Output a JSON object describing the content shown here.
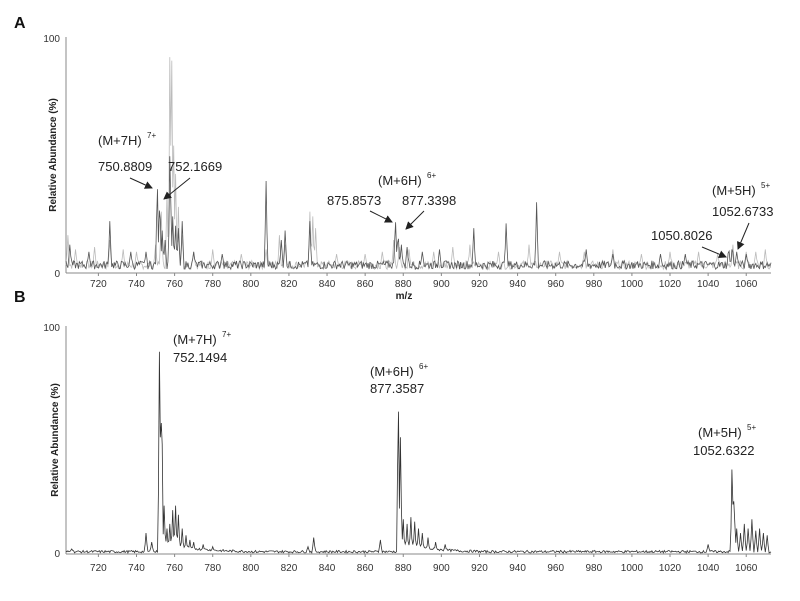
{
  "chart_data": [
    {
      "type": "line",
      "panel": "A",
      "title": "",
      "xlabel": "m/z",
      "ylabel": "Relative Abundance (%)",
      "xlim": [
        703,
        1073
      ],
      "ylim": [
        0,
        100
      ],
      "xticks": [
        "720",
        "740",
        "760",
        "780",
        "800",
        "820",
        "840",
        "860",
        "880",
        "900",
        "920",
        "940",
        "960",
        "980",
        "1000",
        "1020",
        "1040",
        "1060"
      ],
      "yticks": [
        "0",
        "100"
      ],
      "series": [
        {
          "color": "#bbbbbb",
          "peaks": [
            [
              704,
              12
            ],
            [
              708,
              6
            ],
            [
              718,
              7
            ],
            [
              726,
              10
            ],
            [
              733,
              6
            ],
            [
              740,
              5
            ],
            [
              750,
              8
            ],
            [
              753,
              22
            ],
            [
              756,
              30
            ],
            [
              757.6,
              100
            ],
            [
              758.5,
              86
            ],
            [
              759.5,
              50
            ],
            [
              760.5,
              38
            ],
            [
              762,
              24
            ],
            [
              764,
              12
            ],
            [
              770,
              5
            ],
            [
              780,
              6
            ],
            [
              795,
              4
            ],
            [
              808,
              6
            ],
            [
              815,
              12
            ],
            [
              818,
              8
            ],
            [
              831,
              22
            ],
            [
              832.5,
              20
            ],
            [
              834,
              15
            ],
            [
              845,
              4
            ],
            [
              860,
              4
            ],
            [
              869,
              5
            ],
            [
              875,
              10
            ],
            [
              878,
              7
            ],
            [
              883,
              6
            ],
            [
              896,
              5
            ],
            [
              906,
              7
            ],
            [
              915,
              8
            ],
            [
              930,
              5
            ],
            [
              946,
              8
            ],
            [
              962,
              5
            ],
            [
              975,
              5
            ],
            [
              990,
              6
            ],
            [
              1005,
              4
            ],
            [
              1020,
              5
            ],
            [
              1035,
              5
            ],
            [
              1045,
              4
            ],
            [
              1053,
              8
            ],
            [
              1060,
              5
            ],
            [
              1065,
              5
            ],
            [
              1070,
              6
            ]
          ]
        },
        {
          "color": "#555555",
          "peaks": [
            [
              705,
              8
            ],
            [
              715,
              5
            ],
            [
              726,
              18
            ],
            [
              737,
              5
            ],
            [
              745,
              5
            ],
            [
              750.9,
              36
            ],
            [
              752.2,
              30
            ],
            [
              753.5,
              14
            ],
            [
              755,
              10
            ],
            [
              757.6,
              52
            ],
            [
              759,
              20
            ],
            [
              760.5,
              16
            ],
            [
              762,
              15
            ],
            [
              764,
              18
            ],
            [
              770,
              5
            ],
            [
              785,
              4
            ],
            [
              808,
              35
            ],
            [
              816,
              10
            ],
            [
              818,
              14
            ],
            [
              831,
              18
            ],
            [
              875.9,
              20
            ],
            [
              877.3,
              14
            ],
            [
              879,
              8
            ],
            [
              882,
              7
            ],
            [
              890,
              5
            ],
            [
              899,
              6
            ],
            [
              917,
              15
            ],
            [
              934,
              17
            ],
            [
              950,
              26
            ],
            [
              976,
              6
            ],
            [
              990,
              4
            ],
            [
              1015,
              4
            ],
            [
              1028,
              4
            ],
            [
              1050.8,
              7
            ],
            [
              1052.7,
              8
            ],
            [
              1055,
              5
            ],
            [
              1060,
              4
            ]
          ]
        }
      ],
      "annotations": [
        {
          "label": "(M+7H)",
          "charge": "7+",
          "values": [
            "750.8809",
            "752.1669"
          ]
        },
        {
          "label": "(M+6H)",
          "charge": "6+",
          "values": [
            "875.8573",
            "877.3398"
          ]
        },
        {
          "label": "(M+5H)",
          "charge": "5+",
          "values": [
            "1050.8026",
            "1052.6733"
          ]
        }
      ]
    },
    {
      "type": "line",
      "panel": "B",
      "title": "",
      "xlabel": "m/z",
      "ylabel": "Relative Abundance (%)",
      "xlim": [
        703,
        1073
      ],
      "ylim": [
        0,
        100
      ],
      "xticks": [
        "720",
        "740",
        "760",
        "780",
        "800",
        "820",
        "840",
        "860",
        "880",
        "900",
        "920",
        "940",
        "960",
        "980",
        "1000",
        "1020",
        "1040",
        "1060"
      ],
      "yticks": [
        "0",
        "100"
      ],
      "series": [
        {
          "color": "#333333",
          "peaks": [
            [
              706,
              1
            ],
            [
              745,
              8
            ],
            [
              748,
              4
            ],
            [
              752.1,
              100
            ],
            [
              753.2,
              75
            ],
            [
              754.5,
              20
            ],
            [
              756,
              10
            ],
            [
              757.5,
              12
            ],
            [
              759,
              18
            ],
            [
              760.5,
              20
            ],
            [
              762,
              16
            ],
            [
              764,
              10
            ],
            [
              766,
              7
            ],
            [
              768,
              5
            ],
            [
              770,
              4
            ],
            [
              775,
              3
            ],
            [
              780,
              2
            ],
            [
              830,
              2
            ],
            [
              833,
              6
            ],
            [
              868,
              5
            ],
            [
              877.4,
              70
            ],
            [
              878.5,
              50
            ],
            [
              880,
              14
            ],
            [
              882,
              12
            ],
            [
              884,
              15
            ],
            [
              886,
              13
            ],
            [
              888,
              10
            ],
            [
              890,
              8
            ],
            [
              893,
              6
            ],
            [
              897,
              4
            ],
            [
              902,
              3
            ],
            [
              1040,
              3
            ],
            [
              1052.6,
              41
            ],
            [
              1053.6,
              25
            ],
            [
              1055,
              10
            ],
            [
              1057,
              8
            ],
            [
              1059,
              12
            ],
            [
              1061,
              10
            ],
            [
              1063,
              14
            ],
            [
              1065,
              9
            ],
            [
              1067,
              10
            ],
            [
              1069,
              8
            ],
            [
              1071,
              7
            ]
          ]
        }
      ],
      "annotations": [
        {
          "label": "(M+7H)",
          "charge": "7+",
          "values": [
            "752.1494"
          ]
        },
        {
          "label": "(M+6H)",
          "charge": "6+",
          "values": [
            "877.3587"
          ]
        },
        {
          "label": "(M+5H)",
          "charge": "5+",
          "values": [
            "1052.6322"
          ]
        }
      ]
    }
  ]
}
